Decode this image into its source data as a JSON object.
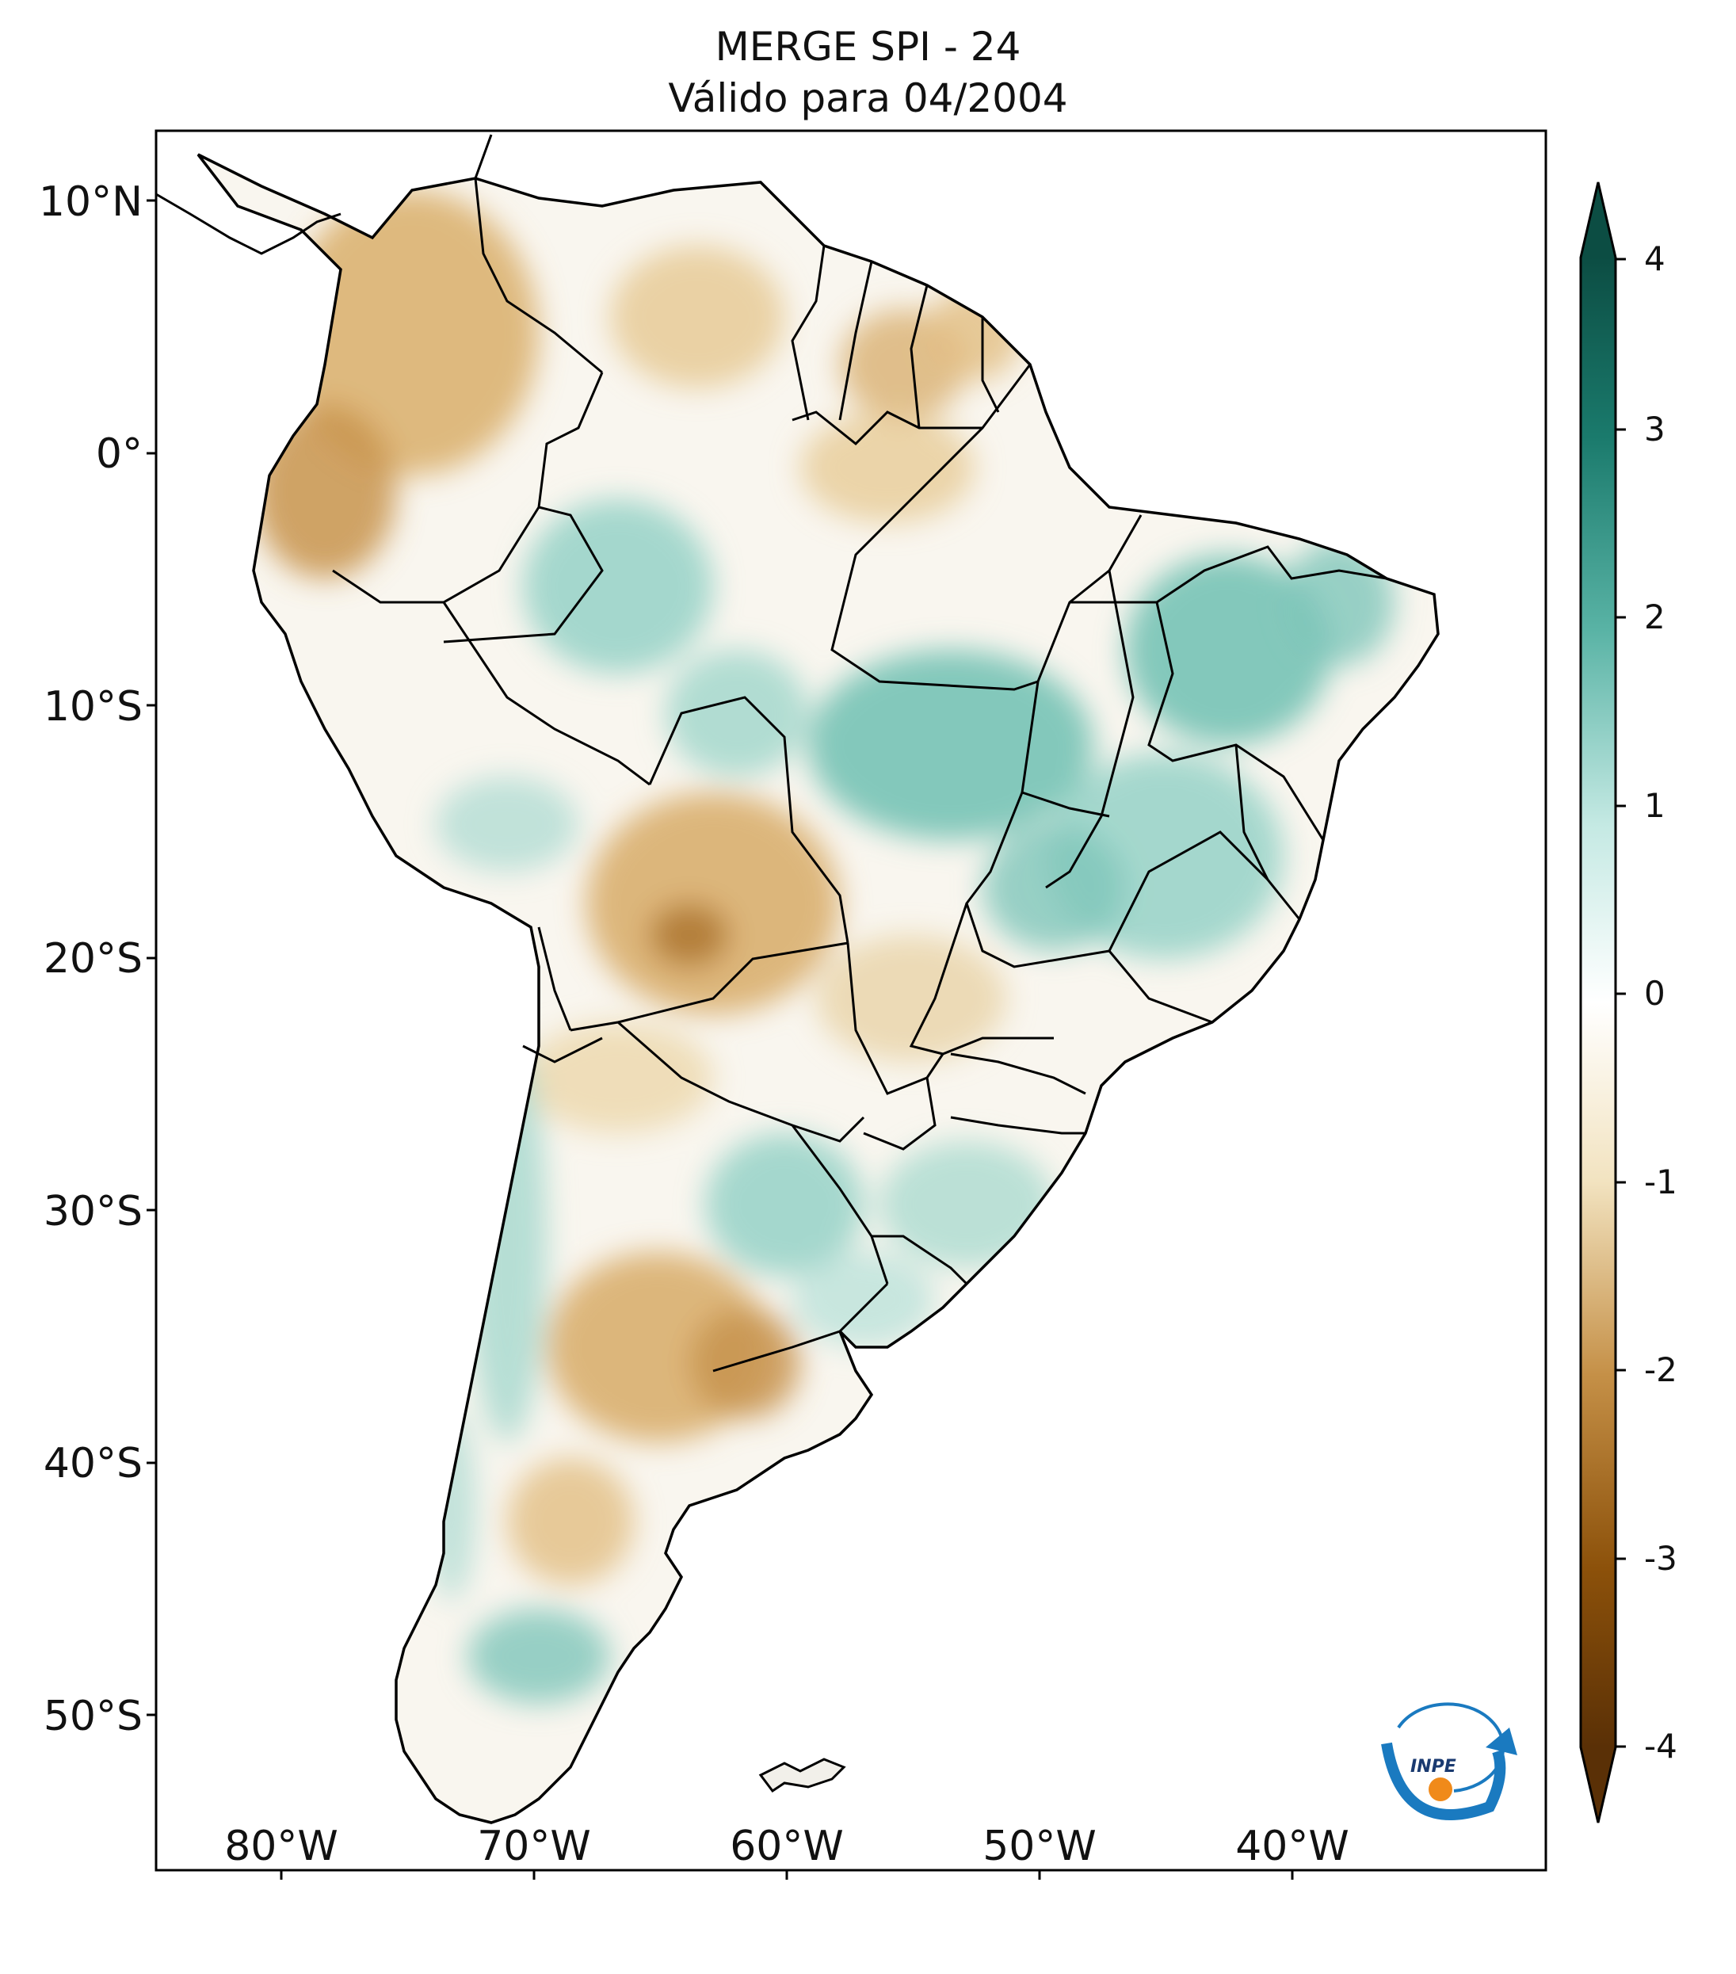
{
  "title": "MERGE   SPI - 24",
  "subtitle": "Válido para 04/2004",
  "lat_labels": [
    "10°N",
    "0°",
    "10°S",
    "20°S",
    "30°S",
    "40°S",
    "50°S"
  ],
  "lon_labels": [
    "80°W",
    "70°W",
    "60°W",
    "50°W",
    "40°W"
  ],
  "colorbar": {
    "ticks": [
      "4",
      "3",
      "2",
      "1",
      "0",
      "-1",
      "-2",
      "-3",
      "-4"
    ],
    "min": -4,
    "max": 4,
    "colors": {
      "dry": "#5a3006",
      "neutral": "#ffffff",
      "wet": "#0c4d43"
    }
  },
  "logo_text": "INPE",
  "chart_data": {
    "type": "heatmap",
    "variable": "SPI - 24",
    "xlim": [
      -85,
      -30
    ],
    "ylim": [
      -56,
      13
    ],
    "value_range": [
      -4,
      4
    ]
  }
}
